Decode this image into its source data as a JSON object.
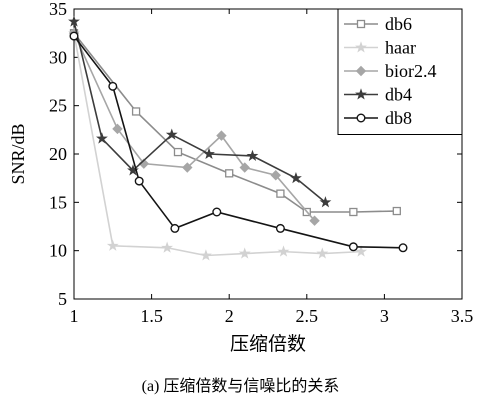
{
  "chart_data": {
    "type": "line",
    "xlabel": "压缩倍数",
    "ylabel": "SNR/dB",
    "xlim": [
      1,
      3.5
    ],
    "ylim": [
      5,
      35
    ],
    "xticks": [
      "1",
      "1.5",
      "2",
      "2.5",
      "3",
      "3.5"
    ],
    "yticks": [
      "5",
      "10",
      "15",
      "20",
      "25",
      "30",
      "35"
    ],
    "xtick_values": [
      1,
      1.5,
      2,
      2.5,
      3,
      3.5
    ],
    "ytick_values": [
      5,
      10,
      15,
      20,
      25,
      30,
      35
    ],
    "grid": false,
    "legend_position": "top-right",
    "series": [
      {
        "name": "db6",
        "marker": "square",
        "color": "#8c8c8c",
        "x": [
          1.0,
          1.4,
          1.67,
          2.0,
          2.33,
          2.5,
          2.8,
          3.08
        ],
        "y": [
          32.5,
          24.4,
          20.2,
          18.0,
          15.9,
          14.0,
          14.0,
          14.1
        ]
      },
      {
        "name": "haar",
        "marker": "star",
        "color": "#d2d2d2",
        "x": [
          1.0,
          1.25,
          1.6,
          1.85,
          2.1,
          2.35,
          2.6,
          2.85
        ],
        "y": [
          32.5,
          10.5,
          10.3,
          9.5,
          9.7,
          9.9,
          9.7,
          9.9
        ]
      },
      {
        "name": "bior2.4",
        "marker": "diamond",
        "color": "#a6a6a6",
        "x": [
          1.0,
          1.28,
          1.45,
          1.73,
          1.95,
          2.1,
          2.3,
          2.55
        ],
        "y": [
          32.5,
          22.6,
          19.0,
          18.6,
          21.9,
          18.6,
          17.8,
          13.1
        ]
      },
      {
        "name": "db4",
        "marker": "star",
        "color": "#3c3c3c",
        "x": [
          1.0,
          1.18,
          1.38,
          1.63,
          1.87,
          2.15,
          2.43,
          2.62
        ],
        "y": [
          33.7,
          21.6,
          18.3,
          22.0,
          20.0,
          19.8,
          17.5,
          15.0
        ]
      },
      {
        "name": "db8",
        "marker": "circle",
        "color": "#141414",
        "x": [
          1.0,
          1.25,
          1.42,
          1.65,
          1.92,
          2.33,
          2.8,
          3.12
        ],
        "y": [
          32.2,
          27.0,
          17.2,
          12.3,
          14.0,
          12.3,
          10.4,
          10.3
        ]
      }
    ]
  },
  "caption": "(a) 压缩倍数与信噪比的关系"
}
